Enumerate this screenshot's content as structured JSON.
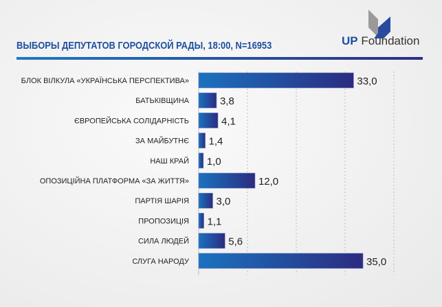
{
  "brand": {
    "strong": "UP",
    "rest": "Foundation"
  },
  "chart_data": {
    "type": "bar",
    "orientation": "horizontal",
    "title": "ВЫБОРЫ ДЕПУТАТОВ ГОРОДСКОЙ РАДЫ, 18:00, N=16953",
    "categories": [
      "БЛОК ВІЛКУЛА «УКРАЇНСЬКА ПЕРСПЕКТИВА»",
      "БАТЬКІВЩИНА",
      "ЄВРОПЕЙСЬКА СОЛІДАРНІСТЬ",
      "ЗА МАЙБУТНЄ",
      "НАШ КРАЙ",
      "ОПОЗИЦІЙНА ПЛАТФОРМА «ЗА ЖИТТЯ»",
      "ПАРТІЯ ШАРІЯ",
      "ПРОПОЗИЦІЯ",
      "СИЛА ЛЮДЕЙ",
      "СЛУГА НАРОДУ"
    ],
    "values": [
      33.0,
      3.8,
      4.1,
      1.4,
      1.0,
      12.0,
      3.0,
      1.1,
      5.6,
      35.0
    ],
    "value_labels": [
      "33,0",
      "3,8",
      "4,1",
      "1,4",
      "1,0",
      "12,0",
      "3,0",
      "1,1",
      "5,6",
      "35,0"
    ],
    "xlim": [
      0,
      42
    ],
    "grid": true,
    "colors": {
      "bar_start": "#1a72bf",
      "bar_end": "#2c2c80"
    }
  }
}
